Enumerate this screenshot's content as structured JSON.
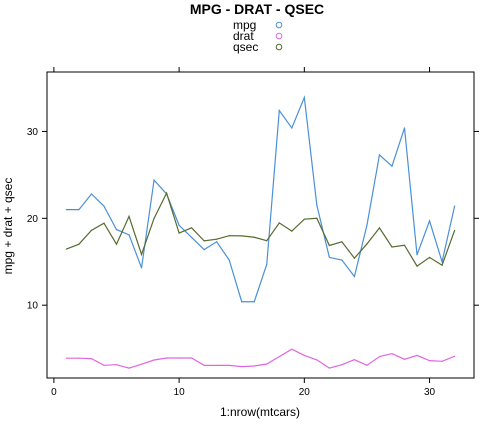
{
  "chart_data": {
    "type": "line",
    "title": "MPG - DRAT - QSEC",
    "xlabel": "1:nrow(mtcars)",
    "ylabel": "mpg + drat + qsec",
    "xlim": [
      -0.55,
      33.55
    ],
    "ylim": [
      1.62,
      36.84
    ],
    "x_ticks": [
      0,
      10,
      20,
      30
    ],
    "y_ticks": [
      10,
      20,
      30
    ],
    "grid": false,
    "legend_position": "top",
    "x": [
      1,
      2,
      3,
      4,
      5,
      6,
      7,
      8,
      9,
      10,
      11,
      12,
      13,
      14,
      15,
      16,
      17,
      18,
      19,
      20,
      21,
      22,
      23,
      24,
      25,
      26,
      27,
      28,
      29,
      30,
      31,
      32
    ],
    "series": [
      {
        "name": "mpg",
        "color": "#4A90D9",
        "values": [
          21.0,
          21.0,
          22.8,
          21.4,
          18.7,
          18.1,
          14.3,
          24.4,
          22.8,
          19.2,
          17.8,
          16.4,
          17.3,
          15.2,
          10.4,
          10.4,
          14.7,
          32.4,
          30.4,
          33.9,
          21.5,
          15.5,
          15.2,
          13.3,
          19.2,
          27.3,
          26.0,
          30.4,
          15.8,
          19.7,
          15.0,
          21.4
        ]
      },
      {
        "name": "drat",
        "color": "#E066E0",
        "values": [
          3.9,
          3.9,
          3.85,
          3.08,
          3.15,
          2.76,
          3.21,
          3.69,
          3.92,
          3.92,
          3.92,
          3.07,
          3.07,
          3.07,
          2.93,
          3.0,
          3.23,
          4.08,
          4.93,
          4.22,
          3.7,
          2.76,
          3.15,
          3.73,
          3.08,
          4.08,
          4.43,
          3.77,
          4.22,
          3.62,
          3.54,
          4.11
        ]
      },
      {
        "name": "qsec",
        "color": "#556B2F",
        "values": [
          16.46,
          17.02,
          18.61,
          19.44,
          17.02,
          20.22,
          15.84,
          20.0,
          22.9,
          18.3,
          18.9,
          17.4,
          17.6,
          18.0,
          17.98,
          17.82,
          17.42,
          19.47,
          18.52,
          19.9,
          20.01,
          16.87,
          17.3,
          15.41,
          17.05,
          18.9,
          16.7,
          16.9,
          14.5,
          15.5,
          14.6,
          18.6
        ]
      }
    ]
  }
}
